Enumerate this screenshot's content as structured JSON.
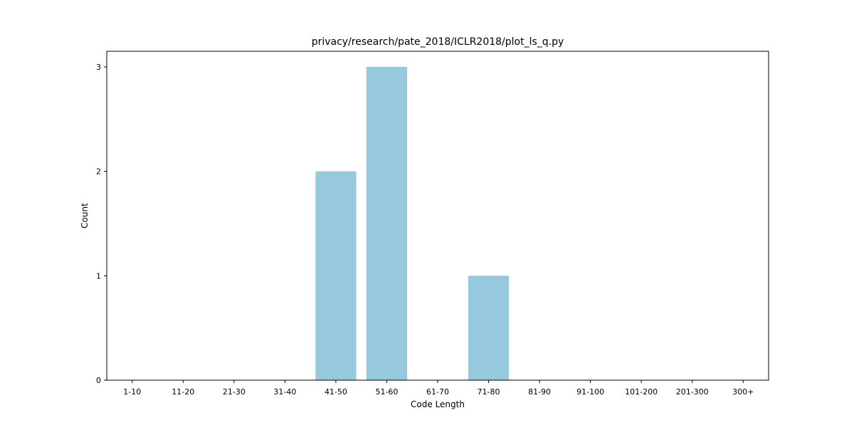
{
  "chart_data": {
    "type": "bar",
    "title": "privacy/research/pate_2018/ICLR2018/plot_ls_q.py",
    "xlabel": "Code Length",
    "ylabel": "Count",
    "categories": [
      "1-10",
      "11-20",
      "21-30",
      "31-40",
      "41-50",
      "51-60",
      "61-70",
      "71-80",
      "81-90",
      "91-100",
      "101-200",
      "201-300",
      "300+"
    ],
    "values": [
      0,
      0,
      0,
      0,
      2,
      3,
      0,
      1,
      0,
      0,
      0,
      0,
      0
    ],
    "ylim": [
      0,
      3.15
    ],
    "yticks": [
      0,
      1,
      2,
      3
    ],
    "grid": false,
    "bar_color": "#96c9de"
  }
}
